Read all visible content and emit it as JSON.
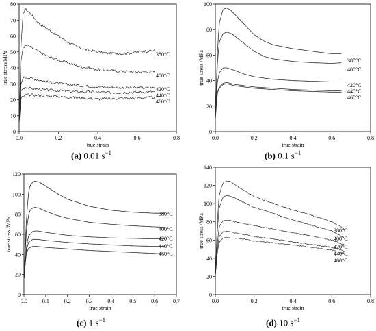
{
  "chart_data": [
    {
      "type": "line",
      "panel_label": "(a)",
      "caption_rate": "0.01 s",
      "caption_exp": "−1",
      "xlabel": "true strain",
      "ylabel": "true stress/MPa",
      "xlim": [
        0,
        0.8
      ],
      "ylim": [
        0,
        80
      ],
      "xticks": [
        0.0,
        0.2,
        0.4,
        0.6,
        0.8
      ],
      "yticks": [
        0,
        10,
        20,
        30,
        40,
        50,
        60,
        70,
        80
      ],
      "noise": 0.8,
      "series": [
        {
          "name": "380°C",
          "x": [
            0,
            0.01,
            0.02,
            0.03,
            0.05,
            0.08,
            0.1,
            0.15,
            0.2,
            0.25,
            0.3,
            0.35,
            0.4,
            0.45,
            0.5,
            0.55,
            0.6,
            0.65,
            0.69
          ],
          "y": [
            5,
            55,
            74,
            77,
            75,
            71,
            68,
            64,
            60,
            56,
            53,
            51,
            50,
            49,
            49,
            49,
            50,
            50.5,
            51
          ]
        },
        {
          "name": "400°C",
          "x": [
            0,
            0.01,
            0.02,
            0.04,
            0.06,
            0.1,
            0.15,
            0.2,
            0.3,
            0.4,
            0.5,
            0.6,
            0.69
          ],
          "y": [
            5,
            45,
            53,
            54,
            53,
            50,
            47,
            45,
            41,
            39,
            38,
            37.5,
            37.5
          ]
        },
        {
          "name": "420°C",
          "x": [
            0,
            0.01,
            0.02,
            0.04,
            0.08,
            0.15,
            0.25,
            0.4,
            0.55,
            0.69
          ],
          "y": [
            5,
            30,
            34,
            34,
            33,
            31,
            29.5,
            28,
            27.5,
            27.5
          ]
        },
        {
          "name": "440°C",
          "x": [
            0,
            0.01,
            0.03,
            0.06,
            0.15,
            0.3,
            0.5,
            0.69
          ],
          "y": [
            5,
            26,
            28,
            27,
            26,
            25,
            24.5,
            25
          ]
        },
        {
          "name": "460°C",
          "x": [
            0,
            0.01,
            0.03,
            0.08,
            0.2,
            0.4,
            0.55,
            0.69
          ],
          "y": [
            5,
            21,
            23,
            23,
            22,
            20.5,
            21,
            21.5
          ]
        }
      ]
    },
    {
      "type": "line",
      "panel_label": "(b)",
      "caption_rate": "0.1 s",
      "caption_exp": "−1",
      "xlabel": "true strain",
      "ylabel": "true stress /MPa",
      "xlim": [
        0,
        0.8
      ],
      "ylim": [
        0,
        100
      ],
      "xticks": [
        0.0,
        0.2,
        0.4,
        0.6,
        0.8
      ],
      "yticks": [
        0,
        20,
        40,
        60,
        80,
        100
      ],
      "noise": 0,
      "series": [
        {
          "name": "380°C",
          "x": [
            0,
            0.01,
            0.02,
            0.04,
            0.06,
            0.08,
            0.1,
            0.15,
            0.2,
            0.25,
            0.3,
            0.4,
            0.5,
            0.6,
            0.65
          ],
          "y": [
            10,
            60,
            85,
            96,
            97,
            95,
            92,
            84,
            76,
            71,
            68,
            65,
            63,
            61,
            61
          ]
        },
        {
          "name": "400°C",
          "x": [
            0,
            0.01,
            0.02,
            0.04,
            0.06,
            0.08,
            0.1,
            0.15,
            0.2,
            0.25,
            0.3,
            0.4,
            0.5,
            0.6,
            0.65
          ],
          "y": [
            10,
            52,
            70,
            77,
            78,
            77,
            75,
            69,
            63,
            59,
            57,
            55,
            54,
            53.5,
            54
          ]
        },
        {
          "name": "420°C",
          "x": [
            0,
            0.01,
            0.02,
            0.04,
            0.06,
            0.1,
            0.15,
            0.2,
            0.3,
            0.4,
            0.5,
            0.6,
            0.65
          ],
          "y": [
            10,
            38,
            46,
            50,
            50,
            48,
            45,
            43,
            41,
            40,
            39.5,
            39,
            39
          ]
        },
        {
          "name": "440°C",
          "x": [
            0,
            0.01,
            0.02,
            0.04,
            0.06,
            0.1,
            0.2,
            0.3,
            0.4,
            0.5,
            0.6,
            0.65
          ],
          "y": [
            10,
            30,
            35,
            38,
            38.5,
            37,
            35,
            34,
            33,
            32.5,
            32,
            32
          ]
        },
        {
          "name": "460°C",
          "x": [
            0,
            0.01,
            0.02,
            0.04,
            0.06,
            0.1,
            0.2,
            0.3,
            0.4,
            0.5,
            0.6,
            0.65
          ],
          "y": [
            10,
            30,
            34,
            37,
            37.5,
            36,
            34,
            33,
            32,
            31.5,
            31,
            31
          ]
        }
      ]
    },
    {
      "type": "line",
      "panel_label": "(c)",
      "caption_rate": "1 s",
      "caption_exp": "−1",
      "xlabel": "true strain",
      "ylabel": "true stress /MPa",
      "xlim": [
        0,
        0.7
      ],
      "ylim": [
        0,
        120
      ],
      "xticks": [
        0.0,
        0.1,
        0.2,
        0.3,
        0.4,
        0.5,
        0.6,
        0.7
      ],
      "yticks": [
        0,
        20,
        40,
        60,
        80,
        100,
        120
      ],
      "noise": 0,
      "series": [
        {
          "name": "380°C",
          "x": [
            0,
            0.01,
            0.02,
            0.03,
            0.05,
            0.07,
            0.1,
            0.15,
            0.2,
            0.3,
            0.4,
            0.5,
            0.6,
            0.65
          ],
          "y": [
            15,
            70,
            100,
            110,
            113,
            112,
            108,
            101,
            95,
            88,
            84,
            82,
            81,
            81
          ]
        },
        {
          "name": "400°C",
          "x": [
            0,
            0.01,
            0.02,
            0.03,
            0.05,
            0.07,
            0.1,
            0.15,
            0.2,
            0.3,
            0.4,
            0.5,
            0.6,
            0.65
          ],
          "y": [
            15,
            60,
            78,
            85,
            87,
            86,
            83,
            79,
            76,
            72,
            70,
            68.5,
            67.5,
            67
          ]
        },
        {
          "name": "420°C",
          "x": [
            0,
            0.01,
            0.02,
            0.04,
            0.06,
            0.1,
            0.2,
            0.3,
            0.4,
            0.5,
            0.6,
            0.65
          ],
          "y": [
            15,
            45,
            58,
            63,
            63.5,
            62,
            59,
            57.5,
            56.5,
            56,
            55.5,
            55.5
          ]
        },
        {
          "name": "440°C",
          "x": [
            0,
            0.01,
            0.02,
            0.04,
            0.06,
            0.1,
            0.2,
            0.3,
            0.4,
            0.5,
            0.6,
            0.65
          ],
          "y": [
            15,
            42,
            52,
            55,
            55,
            54,
            52,
            50.5,
            49.5,
            48.5,
            48,
            48
          ]
        },
        {
          "name": "460°C",
          "x": [
            0,
            0.01,
            0.02,
            0.04,
            0.06,
            0.1,
            0.2,
            0.3,
            0.4,
            0.5,
            0.6,
            0.65
          ],
          "y": [
            15,
            40,
            46,
            48,
            48,
            47,
            45.5,
            44,
            43,
            42,
            41,
            40.5
          ]
        }
      ]
    },
    {
      "type": "line",
      "panel_label": "(d)",
      "caption_rate": "10 s",
      "caption_exp": "−1",
      "xlabel": "true strain",
      "ylabel": "true stress /MPa",
      "xlim": [
        0,
        0.8
      ],
      "ylim": [
        0,
        140
      ],
      "xticks": [
        0.0,
        0.2,
        0.4,
        0.6,
        0.8
      ],
      "yticks": [
        0,
        20,
        40,
        60,
        80,
        100,
        120,
        140
      ],
      "noise": 0.5,
      "series": [
        {
          "name": "380°C",
          "x": [
            0,
            0.01,
            0.02,
            0.04,
            0.06,
            0.08,
            0.1,
            0.15,
            0.2,
            0.3,
            0.4,
            0.5,
            0.6,
            0.65,
            0.67
          ],
          "y": [
            20,
            80,
            110,
            123,
            125,
            124,
            121,
            114,
            108,
            100,
            93,
            87,
            80,
            74,
            71
          ]
        },
        {
          "name": "400°C",
          "x": [
            0,
            0.01,
            0.02,
            0.04,
            0.06,
            0.08,
            0.1,
            0.15,
            0.2,
            0.3,
            0.4,
            0.5,
            0.6,
            0.65,
            0.67
          ],
          "y": [
            20,
            70,
            96,
            107,
            109,
            108,
            106,
            101,
            96,
            89,
            82,
            76,
            70,
            64,
            61
          ]
        },
        {
          "name": "420°C",
          "x": [
            0,
            0.01,
            0.02,
            0.04,
            0.06,
            0.1,
            0.15,
            0.2,
            0.3,
            0.4,
            0.5,
            0.6,
            0.65,
            0.67
          ],
          "y": [
            20,
            55,
            75,
            81,
            82,
            80,
            78,
            76,
            72,
            68,
            64,
            60,
            56,
            54
          ]
        },
        {
          "name": "440°C",
          "x": [
            0,
            0.01,
            0.02,
            0.04,
            0.06,
            0.1,
            0.15,
            0.2,
            0.3,
            0.4,
            0.5,
            0.6,
            0.65,
            0.67
          ],
          "y": [
            20,
            50,
            64,
            69,
            69.5,
            68,
            66,
            64,
            61,
            58,
            55,
            52,
            49,
            47
          ]
        },
        {
          "name": "460°C",
          "x": [
            0,
            0.01,
            0.02,
            0.04,
            0.06,
            0.1,
            0.15,
            0.2,
            0.3,
            0.4,
            0.5,
            0.6,
            0.65,
            0.67
          ],
          "y": [
            20,
            45,
            58,
            62,
            63,
            62,
            61,
            59,
            57,
            54.5,
            52,
            49,
            46,
            44
          ]
        }
      ]
    }
  ]
}
